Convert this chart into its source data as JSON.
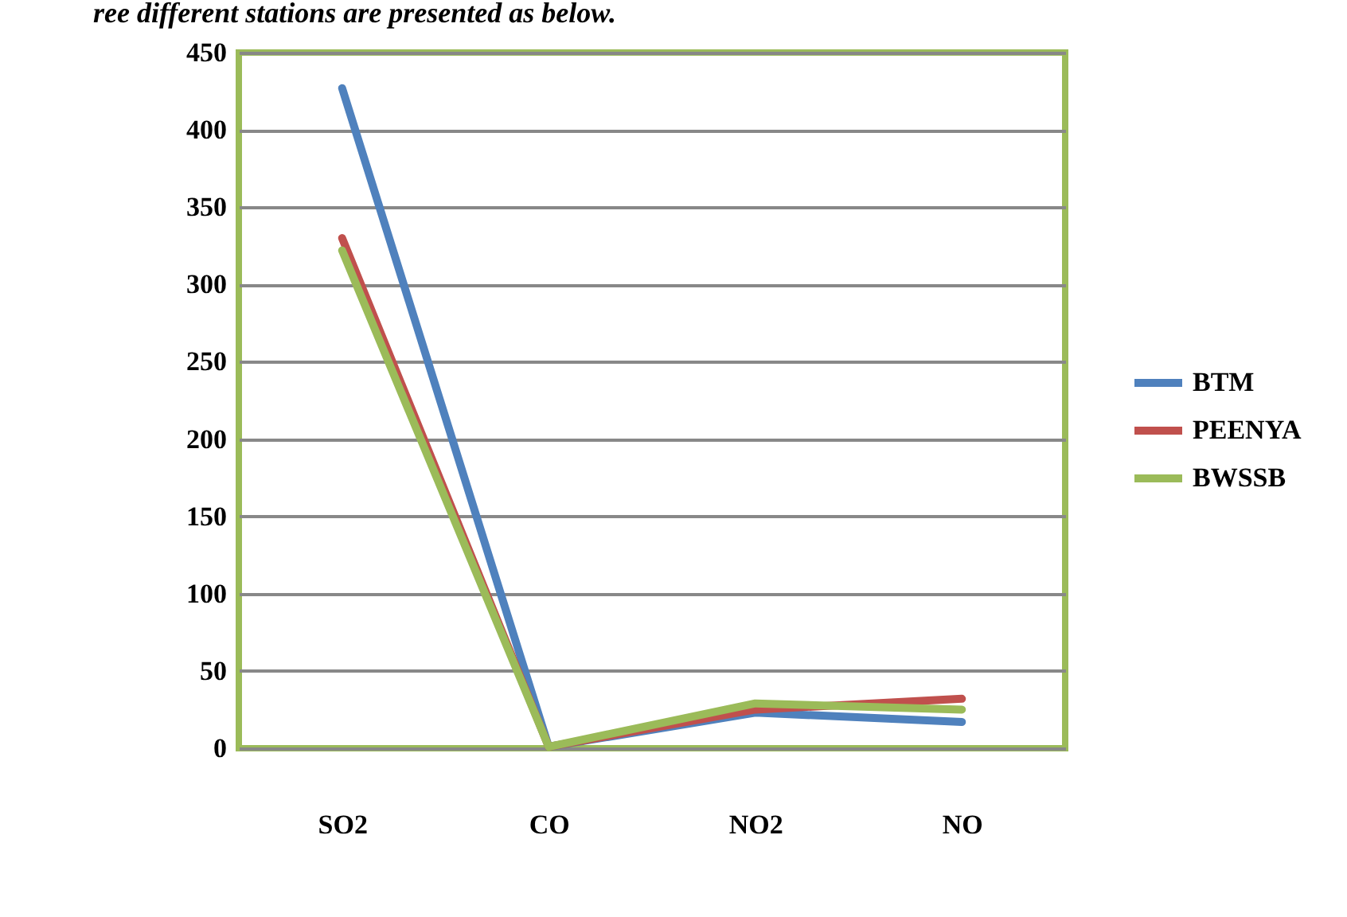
{
  "chart_data": {
    "type": "line",
    "title": "ree different stations are presented as below.",
    "categories": [
      "SO2",
      "CO",
      "NO2",
      "NO"
    ],
    "series": [
      {
        "name": "BTM",
        "color": "#4f81bd",
        "values": [
          427,
          1,
          23,
          17
        ]
      },
      {
        "name": "PEENYA",
        "color": "#c0504d",
        "values": [
          330,
          1,
          25,
          32
        ]
      },
      {
        "name": "BWSSB",
        "color": "#9bbb59",
        "values": [
          322,
          1,
          29,
          25
        ]
      }
    ],
    "ylim": [
      0,
      450
    ],
    "yticks": [
      0,
      50,
      100,
      150,
      200,
      250,
      300,
      350,
      400,
      450
    ],
    "grid": "y",
    "legend": "right",
    "marker": "none",
    "line_style": "solid"
  }
}
